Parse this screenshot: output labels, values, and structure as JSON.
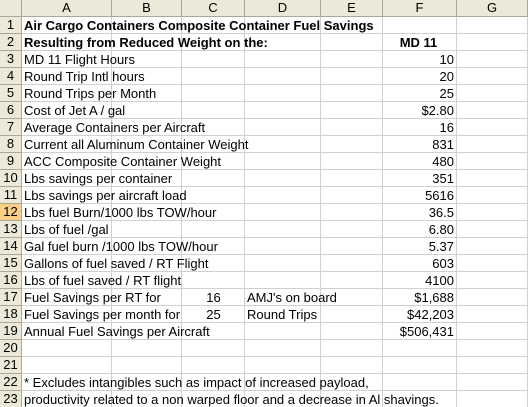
{
  "columns": [
    "A",
    "B",
    "C",
    "D",
    "E",
    "F",
    "G"
  ],
  "rows": [
    {
      "number": 1,
      "cells": {
        "A": "Air Cargo Containers Composite Container Fuel Savings"
      }
    },
    {
      "number": 2,
      "cells": {
        "A": "Resulting from Reduced Weight on the:",
        "F": "MD 11"
      }
    },
    {
      "number": 3,
      "cells": {
        "A": "MD 11 Flight Hours",
        "F": "10"
      }
    },
    {
      "number": 4,
      "cells": {
        "A": "Round Trip Intl hours",
        "F": "20"
      }
    },
    {
      "number": 5,
      "cells": {
        "A": "Round Trips per Month",
        "F": "25"
      }
    },
    {
      "number": 6,
      "cells": {
        "A": "Cost of Jet A / gal",
        "F": "$2.80"
      }
    },
    {
      "number": 7,
      "cells": {
        "A": "Average Containers per Aircraft",
        "F": "16"
      }
    },
    {
      "number": 8,
      "cells": {
        "A": "Current all Aluminum Container Weight",
        "F": "831"
      }
    },
    {
      "number": 9,
      "cells": {
        "A": "ACC Composite Container Weight",
        "F": "480"
      }
    },
    {
      "number": 10,
      "cells": {
        "A": "Lbs savings per container",
        "F": "351"
      }
    },
    {
      "number": 11,
      "cells": {
        "A": "Lbs savings per aircraft load",
        "F": "5616"
      }
    },
    {
      "number": 12,
      "cells": {
        "A": "Lbs fuel Burn/1000 lbs TOW/hour",
        "F": "36.5"
      }
    },
    {
      "number": 13,
      "cells": {
        "A": "Lbs of fuel /gal",
        "F": "6.80"
      }
    },
    {
      "number": 14,
      "cells": {
        "A": "Gal fuel burn /1000 lbs TOW/hour",
        "F": "5.37"
      }
    },
    {
      "number": 15,
      "cells": {
        "A": "Gallons of fuel saved / RT Flight",
        "F": "603"
      }
    },
    {
      "number": 16,
      "cells": {
        "A": "Lbs of fuel saved / RT flight",
        "F": "4100"
      }
    },
    {
      "number": 17,
      "cells": {
        "A": "Fuel Savings per RT for",
        "C": "16",
        "D": "AMJ's on board",
        "F": "$1,688"
      }
    },
    {
      "number": 18,
      "cells": {
        "A": "Fuel Savings per month for",
        "C": "25",
        "D": "Round Trips",
        "F": "$42,203"
      }
    },
    {
      "number": 19,
      "cells": {
        "A": "Annual Fuel Savings per Aircraft",
        "F": "$506,431"
      }
    },
    {
      "number": 20,
      "cells": {}
    },
    {
      "number": 21,
      "cells": {}
    },
    {
      "number": 22,
      "cells": {
        "A": "* Excludes intangibles such as impact of increased payload,"
      }
    },
    {
      "number": 23,
      "cells": {
        "A": "productivity related to a non warped floor and a decrease in Al shavings."
      }
    }
  ]
}
